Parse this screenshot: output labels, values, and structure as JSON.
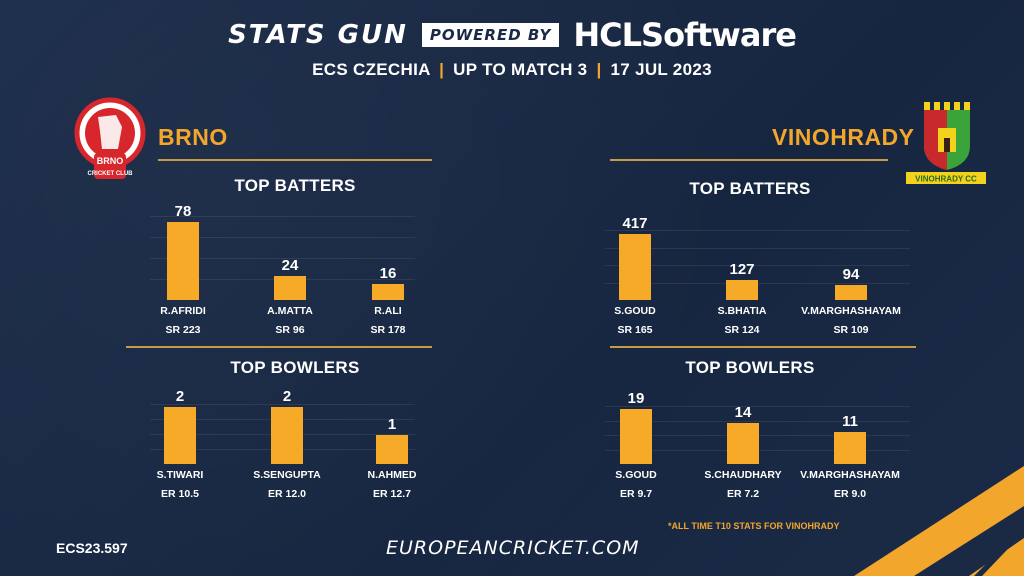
{
  "header": {
    "brand_stats": "STATS GUN",
    "brand_powered": "POWERED BY",
    "brand_hcl": "HCLSoftware",
    "subtitle_parts": [
      "ECS CZECHIA",
      "UP TO MATCH 3",
      "17 JUL 2023"
    ],
    "separator": "|"
  },
  "teams": {
    "left": {
      "name": "BRNO",
      "logo_text_1": "BRNO",
      "logo_text_2": "CRICKET CLUB"
    },
    "right": {
      "name": "VINOHRADY",
      "logo_text": "VINOHRADY CC"
    }
  },
  "footer": {
    "code": "ECS23.597",
    "url": "EUROPEANCRICKET.COM",
    "footnote": "*ALL TIME T10 STATS FOR VINOHRADY"
  },
  "colors": {
    "bar": "#f7a928",
    "accent": "#f2a62b",
    "background": "#1a2a45"
  },
  "chart_data": [
    {
      "type": "bar",
      "title": "TOP BATTERS",
      "team": "BRNO",
      "categories": [
        "R.AFRIDI",
        "A.MATTA",
        "R.ALI"
      ],
      "values": [
        78,
        24,
        16
      ],
      "secondary": [
        "SR 223",
        "SR 96",
        "SR 178"
      ],
      "ylim": [
        0,
        84
      ]
    },
    {
      "type": "bar",
      "title": "TOP BOWLERS",
      "team": "BRNO",
      "categories": [
        "S.TIWARI",
        "S.SENGUPTA",
        "N.AHMED"
      ],
      "values": [
        2,
        2,
        1
      ],
      "secondary": [
        "ER 10.5",
        "ER 12.0",
        "ER 12.7"
      ],
      "ylim": [
        0,
        2.1
      ]
    },
    {
      "type": "bar",
      "title": "TOP BATTERS",
      "team": "VINOHRADY",
      "categories": [
        "S.GOUD",
        "S.BHATIA",
        "V.MARGHASHAYAM"
      ],
      "values": [
        417,
        127,
        94
      ],
      "secondary": [
        "SR 165",
        "SR 124",
        "SR 109"
      ],
      "ylim": [
        0,
        440
      ]
    },
    {
      "type": "bar",
      "title": "TOP BOWLERS",
      "team": "VINOHRADY",
      "categories": [
        "S.GOUD",
        "S.CHAUDHARY",
        "V.MARGHASHAYAM"
      ],
      "values": [
        19,
        14,
        11
      ],
      "secondary": [
        "ER 9.7",
        "ER 7.2",
        "ER 9.0"
      ],
      "ylim": [
        0,
        20
      ]
    }
  ]
}
